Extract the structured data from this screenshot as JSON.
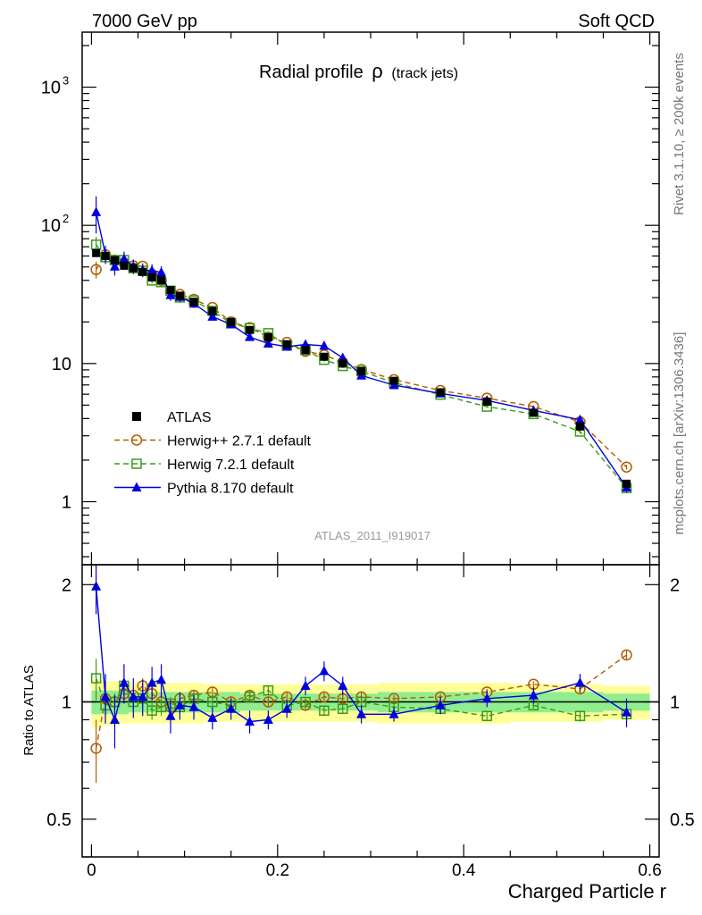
{
  "header": {
    "left": "7000 GeV pp",
    "right": "Soft QCD"
  },
  "side_text": {
    "rivet": "Rivet 3.1.10, ≥ 200k events",
    "source": "mcplots.cern.ch [arXiv:1306.3436]"
  },
  "chart_data": {
    "type": "line",
    "title": "Radial profile",
    "title_symbol": "ρ",
    "title_suffix": "(track jets)",
    "analysis_label": "ATLAS_2011_I919017",
    "xlabel": "Charged Particle r",
    "ylabel_ratio": "Ratio to ATLAS",
    "xlim": [
      -0.01,
      0.61
    ],
    "ylim_main": [
      0.35,
      2500
    ],
    "yscale_main": "log",
    "ylim_ratio": [
      0.4,
      2.25
    ],
    "yscale_ratio": "log",
    "x_ticks": [
      {
        "value": 0,
        "label": "0"
      },
      {
        "value": 0.2,
        "label": "0.2"
      },
      {
        "value": 0.4,
        "label": "0.4"
      },
      {
        "value": 0.6,
        "label": "0.6"
      }
    ],
    "main_ticks": [
      {
        "value": 1,
        "label": "1"
      },
      {
        "value": 10,
        "label": "10"
      },
      {
        "value": 100,
        "label": "10",
        "exp": "2"
      },
      {
        "value": 1000,
        "label": "10",
        "exp": "3"
      }
    ],
    "ratio_ticks": [
      {
        "value": 0.5,
        "label": "0.5"
      },
      {
        "value": 1,
        "label": "1"
      },
      {
        "value": 2,
        "label": "2"
      }
    ],
    "x": [
      0.005,
      0.015,
      0.025,
      0.035,
      0.045,
      0.055,
      0.065,
      0.075,
      0.085,
      0.095,
      0.11,
      0.13,
      0.15,
      0.17,
      0.19,
      0.21,
      0.23,
      0.25,
      0.27,
      0.29,
      0.325,
      0.375,
      0.425,
      0.475,
      0.525,
      0.575
    ],
    "atlas": {
      "name": "ATLAS",
      "values": [
        63,
        60,
        56,
        51,
        49,
        46,
        42,
        40,
        34,
        31,
        28,
        24,
        20,
        17.5,
        15.5,
        13.8,
        12.5,
        11.2,
        10,
        8.8,
        7.5,
        6.2,
        5.3,
        4.4,
        3.5,
        1.35
      ],
      "band_outer": [
        0.14,
        0.13,
        0.13,
        0.12,
        0.12,
        0.12,
        0.12,
        0.12,
        0.12,
        0.12,
        0.12,
        0.11,
        0.11,
        0.11,
        0.11,
        0.11,
        0.11,
        0.11,
        0.11,
        0.11,
        0.12,
        0.12,
        0.12,
        0.11,
        0.11,
        0.1
      ],
      "band_inner": [
        0.07,
        0.07,
        0.07,
        0.07,
        0.06,
        0.06,
        0.06,
        0.06,
        0.06,
        0.06,
        0.06,
        0.06,
        0.06,
        0.05,
        0.05,
        0.05,
        0.05,
        0.05,
        0.05,
        0.05,
        0.06,
        0.06,
        0.06,
        0.06,
        0.06,
        0.05
      ]
    },
    "series": [
      {
        "name": "Herwig++ 2.7.1 default",
        "color": "#b35c00",
        "marker": "open-circle",
        "dash": "6,4",
        "ratio": [
          0.76,
          1.02,
          1.0,
          1.05,
          1.04,
          1.1,
          1.05,
          1.0,
          0.97,
          1.02,
          1.04,
          1.06,
          1.0,
          1.04,
          1.0,
          1.03,
          0.98,
          1.03,
          1.02,
          1.03,
          1.02,
          1.03,
          1.06,
          1.11,
          1.08,
          1.32
        ],
        "ratio_err": [
          0.14,
          0.06,
          0.05,
          0.05,
          0.05,
          0.05,
          0.05,
          0.05,
          0.04,
          0.04,
          0.03,
          0.03,
          0.03,
          0.03,
          0.03,
          0.03,
          0.03,
          0.03,
          0.03,
          0.03,
          0.02,
          0.02,
          0.02,
          0.02,
          0.03,
          0.04
        ]
      },
      {
        "name": "Herwig 7.2.1 default",
        "color": "#3a9a1a",
        "marker": "open-square",
        "dash": "6,4",
        "ratio": [
          1.15,
          0.98,
          1.0,
          1.1,
          1.0,
          1.02,
          0.95,
          0.97,
          0.99,
          0.97,
          1.02,
          1.0,
          0.98,
          1.03,
          1.07,
          0.98,
          1.0,
          0.95,
          0.96,
          1.0,
          0.97,
          0.96,
          0.92,
          0.98,
          0.92,
          0.93
        ],
        "ratio_err": [
          0.14,
          0.06,
          0.05,
          0.05,
          0.05,
          0.05,
          0.05,
          0.05,
          0.04,
          0.04,
          0.03,
          0.03,
          0.03,
          0.03,
          0.03,
          0.03,
          0.03,
          0.03,
          0.03,
          0.03,
          0.02,
          0.02,
          0.02,
          0.02,
          0.03,
          0.04
        ]
      },
      {
        "name": "Pythia 8.170 default",
        "color": "#0000dd",
        "marker": "filled-triangle",
        "dash": "",
        "ratio": [
          1.98,
          1.03,
          0.9,
          1.12,
          1.03,
          1.03,
          1.12,
          1.14,
          0.92,
          0.98,
          0.97,
          0.91,
          0.96,
          0.89,
          0.9,
          0.96,
          1.1,
          1.2,
          1.1,
          0.93,
          0.93,
          0.98,
          1.02,
          1.04,
          1.12,
          0.94
        ],
        "ratio_err": [
          0.3,
          0.15,
          0.14,
          0.13,
          0.12,
          0.11,
          0.11,
          0.11,
          0.09,
          0.08,
          0.07,
          0.06,
          0.06,
          0.06,
          0.05,
          0.05,
          0.06,
          0.07,
          0.06,
          0.05,
          0.04,
          0.05,
          0.05,
          0.05,
          0.06,
          0.08
        ]
      }
    ]
  }
}
